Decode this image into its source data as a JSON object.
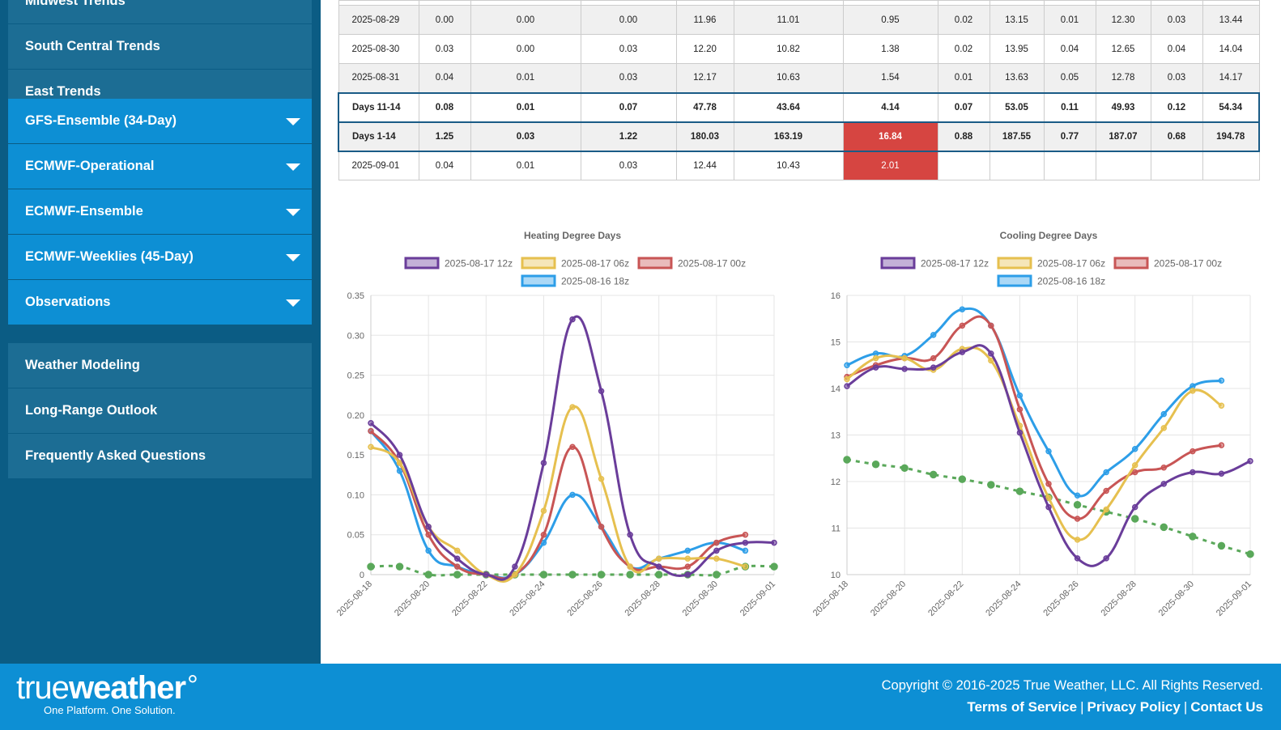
{
  "sidebar": {
    "top_items": [
      "Midwest Trends",
      "South Central Trends",
      "East Trends"
    ],
    "dropdown_items": [
      "GFS-Ensemble (34-Day)",
      "ECMWF-Operational",
      "ECMWF-Ensemble",
      "ECMWF-Weeklies (45-Day)",
      "Observations"
    ],
    "bottom_items": [
      "Weather Modeling",
      "Long-Range Outlook",
      "Frequently Asked Questions"
    ]
  },
  "table": {
    "rows": [
      {
        "cells": [
          "2025-08-29",
          "0.00",
          "0.00",
          "0.00",
          "11.96",
          "11.01",
          "0.95",
          "0.02",
          "13.15",
          "0.01",
          "12.30",
          "0.03",
          "13.44"
        ],
        "style": "alt"
      },
      {
        "cells": [
          "2025-08-30",
          "0.03",
          "0.00",
          "0.03",
          "12.20",
          "10.82",
          "1.38",
          "0.02",
          "13.95",
          "0.04",
          "12.65",
          "0.04",
          "14.04"
        ],
        "style": ""
      },
      {
        "cells": [
          "2025-08-31",
          "0.04",
          "0.01",
          "0.03",
          "12.17",
          "10.63",
          "1.54",
          "0.01",
          "13.63",
          "0.05",
          "12.78",
          "0.03",
          "14.17"
        ],
        "style": "alt"
      },
      {
        "cells": [
          "Days 11-14",
          "0.08",
          "0.01",
          "0.07",
          "47.78",
          "43.64",
          "4.14",
          "0.07",
          "53.05",
          "0.11",
          "49.93",
          "0.12",
          "54.34"
        ],
        "style": "bold hl"
      },
      {
        "cells": [
          "Days 1-14",
          "1.25",
          "0.03",
          "1.22",
          "180.03",
          "163.19",
          "16.84",
          "0.88",
          "187.55",
          "0.77",
          "187.07",
          "0.68",
          "194.78"
        ],
        "style": "bold hl alt",
        "red_col": 6
      },
      {
        "cells": [
          "2025-09-01",
          "0.04",
          "0.01",
          "0.03",
          "12.44",
          "10.43",
          "2.01",
          "",
          "",
          "",
          "",
          "",
          ""
        ],
        "style": "",
        "red_col": 6
      }
    ]
  },
  "chart_data": [
    {
      "type": "line",
      "title": "Heating Degree Days",
      "x": [
        "2025-08-18",
        "2025-08-19",
        "2025-08-20",
        "2025-08-21",
        "2025-08-22",
        "2025-08-23",
        "2025-08-24",
        "2025-08-25",
        "2025-08-26",
        "2025-08-27",
        "2025-08-28",
        "2025-08-29",
        "2025-08-30",
        "2025-08-31",
        "2025-09-01"
      ],
      "xticks": [
        "2025-08-18",
        "2025-08-20",
        "2025-08-22",
        "2025-08-24",
        "2025-08-26",
        "2025-08-28",
        "2025-08-30",
        "2025-09-01"
      ],
      "ylim": [
        0,
        0.35
      ],
      "yticks": [
        0,
        0.05,
        0.1,
        0.15,
        0.2,
        0.25,
        0.3,
        0.35
      ],
      "ytick_labels": [
        "0",
        "0.05",
        "0.10",
        "0.15",
        "0.20",
        "0.25",
        "0.30",
        "0.35"
      ],
      "series": [
        {
          "name": "2025-08-17 12z",
          "color": "#6a3d9a",
          "values": [
            0.19,
            0.15,
            0.06,
            0.02,
            0.0,
            0.01,
            0.14,
            0.32,
            0.23,
            0.05,
            0.01,
            0.0,
            0.03,
            0.04,
            0.04
          ]
        },
        {
          "name": "2025-08-17 06z",
          "color": "#e6c04f",
          "values": [
            0.16,
            0.14,
            0.06,
            0.03,
            0.0,
            0.0,
            0.08,
            0.21,
            0.12,
            0.01,
            0.02,
            0.02,
            0.02,
            0.01,
            null
          ]
        },
        {
          "name": "2025-08-17 00z",
          "color": "#c85555",
          "values": [
            0.18,
            0.14,
            0.05,
            0.01,
            0.0,
            0.0,
            0.05,
            0.16,
            0.06,
            0.01,
            0.01,
            0.01,
            0.04,
            0.05,
            null
          ]
        },
        {
          "name": "2025-08-16 18z",
          "color": "#2d9ee8",
          "values": [
            0.18,
            0.13,
            0.03,
            0.01,
            0.0,
            0.0,
            0.04,
            0.1,
            0.06,
            0.01,
            0.02,
            0.03,
            0.04,
            0.03,
            null
          ]
        },
        {
          "name": "",
          "color": "#5aa85a",
          "dashed": true,
          "legend": false,
          "values": [
            0.01,
            0.01,
            0.0,
            0.0,
            0.0,
            0.0,
            0.0,
            0.0,
            0.0,
            0.0,
            0.0,
            0.0,
            0.0,
            0.01,
            0.01
          ]
        }
      ]
    },
    {
      "type": "line",
      "title": "Cooling Degree Days",
      "x": [
        "2025-08-18",
        "2025-08-19",
        "2025-08-20",
        "2025-08-21",
        "2025-08-22",
        "2025-08-23",
        "2025-08-24",
        "2025-08-25",
        "2025-08-26",
        "2025-08-27",
        "2025-08-28",
        "2025-08-29",
        "2025-08-30",
        "2025-08-31",
        "2025-09-01"
      ],
      "xticks": [
        "2025-08-18",
        "2025-08-20",
        "2025-08-22",
        "2025-08-24",
        "2025-08-26",
        "2025-08-28",
        "2025-08-30",
        "2025-09-01"
      ],
      "ylim": [
        10,
        16
      ],
      "yticks": [
        10,
        11,
        12,
        13,
        14,
        15,
        16
      ],
      "ytick_labels": [
        "10",
        "11",
        "12",
        "13",
        "14",
        "15",
        "16"
      ],
      "series": [
        {
          "name": "2025-08-17 12z",
          "color": "#6a3d9a",
          "values": [
            14.05,
            14.45,
            14.42,
            14.45,
            14.78,
            14.75,
            13.05,
            11.45,
            10.35,
            10.35,
            11.45,
            11.95,
            12.2,
            12.17,
            12.44
          ]
        },
        {
          "name": "2025-08-17 06z",
          "color": "#e6c04f",
          "values": [
            14.2,
            14.65,
            14.65,
            14.4,
            14.85,
            14.6,
            13.2,
            11.65,
            10.75,
            11.4,
            12.35,
            13.15,
            13.95,
            13.63,
            null
          ]
        },
        {
          "name": "2025-08-17 00z",
          "color": "#c85555",
          "values": [
            14.25,
            14.5,
            14.65,
            14.65,
            15.35,
            15.35,
            13.55,
            11.95,
            11.2,
            11.8,
            12.2,
            12.3,
            12.65,
            12.78,
            null
          ]
        },
        {
          "name": "2025-08-16 18z",
          "color": "#2d9ee8",
          "values": [
            14.5,
            14.75,
            14.7,
            15.15,
            15.7,
            15.35,
            13.85,
            12.65,
            11.7,
            12.2,
            12.7,
            13.45,
            14.05,
            14.17,
            null
          ]
        },
        {
          "name": "",
          "color": "#5aa85a",
          "dashed": true,
          "legend": false,
          "values": [
            12.47,
            12.37,
            12.29,
            12.15,
            12.05,
            11.93,
            11.79,
            11.66,
            11.5,
            11.35,
            11.2,
            11.02,
            10.82,
            10.62,
            10.44
          ]
        }
      ]
    }
  ],
  "footer": {
    "logo_thin": "true",
    "logo_bold": "weather",
    "logo_mark": "°",
    "tagline": "One Platform. One Solution.",
    "copyright": "Copyright © 2016-2025 True Weather, LLC. All Rights Reserved.",
    "links": [
      "Terms of Service",
      "Privacy Policy",
      "Contact Us"
    ]
  }
}
